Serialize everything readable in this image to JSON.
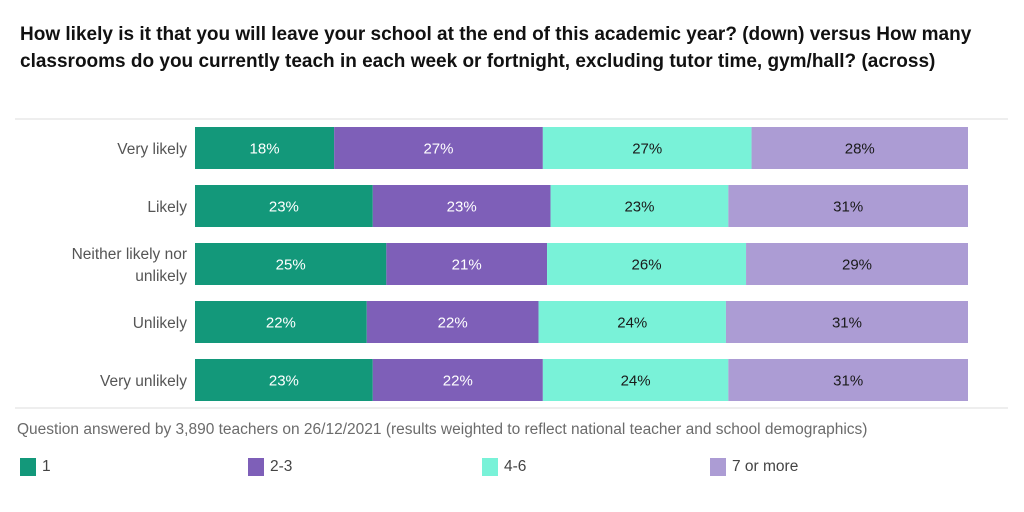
{
  "chart_data": {
    "type": "bar",
    "orientation": "horizontal",
    "stacked": true,
    "title": "How likely is it that you will leave your school at the end of this academic year? (down) versus How many classrooms do you currently teach in each week or fortnight, excluding tutor time, gym/hall? (across)",
    "categories": [
      "Very likely",
      "Likely",
      "Neither likely nor unlikely",
      "Unlikely",
      "Very unlikely"
    ],
    "series": [
      {
        "name": "1",
        "color": "#13987a",
        "values": [
          18,
          23,
          25,
          22,
          23
        ]
      },
      {
        "name": "2-3",
        "color": "#7e5fb8",
        "values": [
          27,
          23,
          21,
          22,
          22
        ]
      },
      {
        "name": "4-6",
        "color": "#79f2d8",
        "values": [
          27,
          23,
          26,
          24,
          24
        ]
      },
      {
        "name": "7 or more",
        "color": "#ac9cd4",
        "values": [
          28,
          31,
          29,
          31,
          31
        ]
      }
    ],
    "unit": "%",
    "legend_position": "bottom",
    "grid": false,
    "footnote": "Question answered by 3,890 teachers on 26/12/2021 (results weighted to reflect national teacher and school demographics)"
  }
}
